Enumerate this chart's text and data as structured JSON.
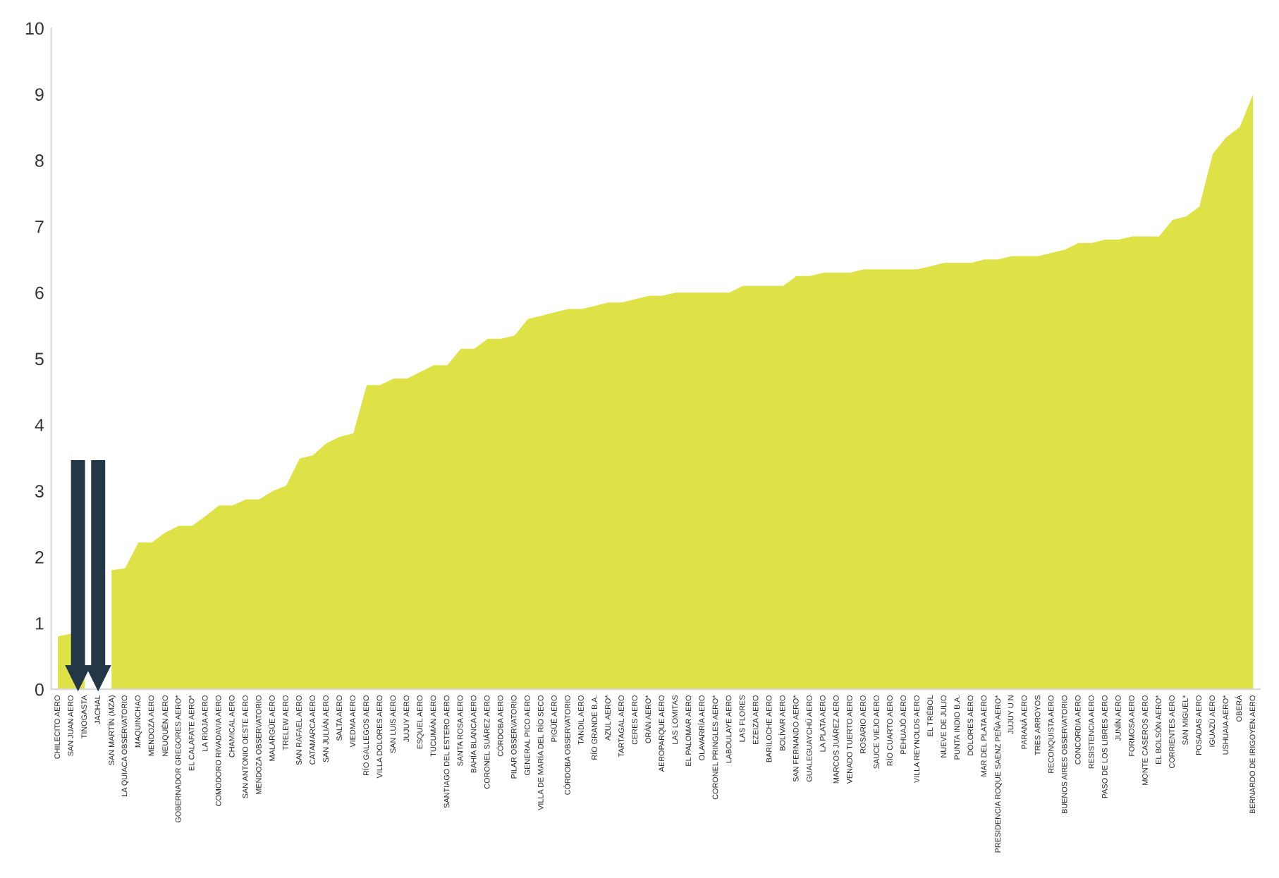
{
  "chart_data": {
    "type": "area",
    "categories": [
      "CHILECITO AERO",
      "SAN JUAN AERO",
      "TINOGASTA",
      "JACHAL",
      "SAN MARTÍN (MZA)",
      "LA QUIACA OBSERVATORIO",
      "MAQUINCHAO",
      "MENDOZA AERO",
      "NEUQUÉN AERO",
      "GOBERNADOR GREGORES AERO*",
      "EL CALAFATE AERO*",
      "LA RIOJA AERO",
      "COMODORO RIVADAVIA AERO",
      "CHAMICAL AERO",
      "SAN ANTONIO OESTE AERO",
      "MENDOZA OBSERVATORIO",
      "MALARGÜE AERO",
      "TRELEW AERO",
      "SAN RAFAEL AERO",
      "CATAMARCA AERO",
      "SAN JULIÁN AERO",
      "SALTA AERO",
      "VIEDMA AERO",
      "RÍO GALLEGOS AERO",
      "VILLA DOLORES AERO",
      "SAN LUIS AERO",
      "JUJUY AERO",
      "ESQUEL AERO",
      "TUCUMÁN AERO",
      "SANTIAGO DEL ESTERO AERO",
      "SANTA ROSA AERO",
      "BAHÍA BLANCA AERO",
      "CORONEL SUÁREZ AERO",
      "CÓRDOBA AERO",
      "PILAR OBSERVATORIO",
      "GENERAL PICO AERO",
      "VILLA DE MARÍA DEL RÍO SECO",
      "PIGÜÉ AERO",
      "CÓRDOBA OBSERVATORIO",
      "TANDIL AERO",
      "RÍO GRANDE B.A.",
      "AZUL AERO*",
      "TARTAGAL AERO",
      "CERES AERO",
      "ORÁN AERO*",
      "AEROPARQUE AERO",
      "LAS LOMITAS",
      "EL PALOMAR AERO",
      "OLAVARRÍA AERO",
      "CORONEL PRINGLES AERO*",
      "LABOULAYE AERO",
      "LAS FLORES",
      "EZEIZA AERO",
      "BARILOCHE AERO",
      "BOLÍVAR AERO",
      "SAN FERNANDO AERO*",
      "GUALEGUAYCHÚ AERO",
      "LA PLATA AERO",
      "MARCOS JUÁREZ AERO",
      "VENADO TUERTO AERO",
      "ROSARIO AERO",
      "SAUCE VIEJO AERO",
      "RÍO CUARTO AERO",
      "PEHUAJÓ AERO",
      "VILLA REYNOLDS AERO",
      "EL TRÉBOL",
      "NUEVE DE JULIO",
      "PUNTA INDIO B.A.",
      "DOLORES AERO",
      "MAR DEL PLATA AERO",
      "PRESIDENCIA ROQUE SAENZ PEÑA AERO*",
      "JUJUY U N",
      "PARANÁ AERO",
      "TRES ARROYOS",
      "RECONQUISTA AERO",
      "BUENOS AIRES OBSERVATORIO",
      "CONCORDIA AERO",
      "RESISTENCIA AERO",
      "PASO DE LOS LIBRES AERO",
      "JUNÍN AERO",
      "FORMOSA AERO",
      "MONTE CASEROS AERO",
      "EL BOLSÓN AERO*",
      "CORRIENTES AERO",
      "SAN MIGUEL*",
      "POSADAS AERO",
      "IGUAZÚ AERO",
      "USHUAIA AERO*",
      "OBERÁ",
      "BERNARDO DE IRIGOYEN AERO"
    ],
    "series": [
      {
        "color": "#dfe247",
        "values": [
          0.8,
          0.84,
          0.88,
          null,
          1.8,
          1.83,
          2.22,
          2.22,
          2.37,
          2.47,
          2.47,
          2.62,
          2.78,
          2.78,
          2.87,
          2.87,
          3.0,
          3.08,
          3.49,
          3.54,
          3.72,
          3.82,
          3.87,
          4.6,
          4.6,
          4.7,
          4.7,
          4.8,
          4.9,
          4.9,
          5.15,
          5.15,
          5.3,
          5.3,
          5.35,
          5.6,
          5.65,
          5.7,
          5.75,
          5.75,
          5.8,
          5.85,
          5.85,
          5.9,
          5.95,
          5.95,
          6.0,
          6.0,
          6.0,
          6.0,
          6.0,
          6.1,
          6.1,
          6.1,
          6.1,
          6.25,
          6.25,
          6.3,
          6.3,
          6.3,
          6.35,
          6.35,
          6.35,
          6.35,
          6.35,
          6.4,
          6.45,
          6.45,
          6.45,
          6.5,
          6.5,
          6.55,
          6.55,
          6.55,
          6.6,
          6.65,
          6.75,
          6.75,
          6.8,
          6.8,
          6.85,
          6.85,
          6.85,
          7.1,
          7.15,
          7.3,
          8.1,
          8.35,
          8.5,
          9.0
        ]
      }
    ],
    "ylim": [
      0,
      10
    ],
    "yticks": [
      0,
      1,
      2,
      3,
      4,
      5,
      6,
      7,
      8,
      9,
      10
    ],
    "grid": false,
    "legend": false
  }
}
